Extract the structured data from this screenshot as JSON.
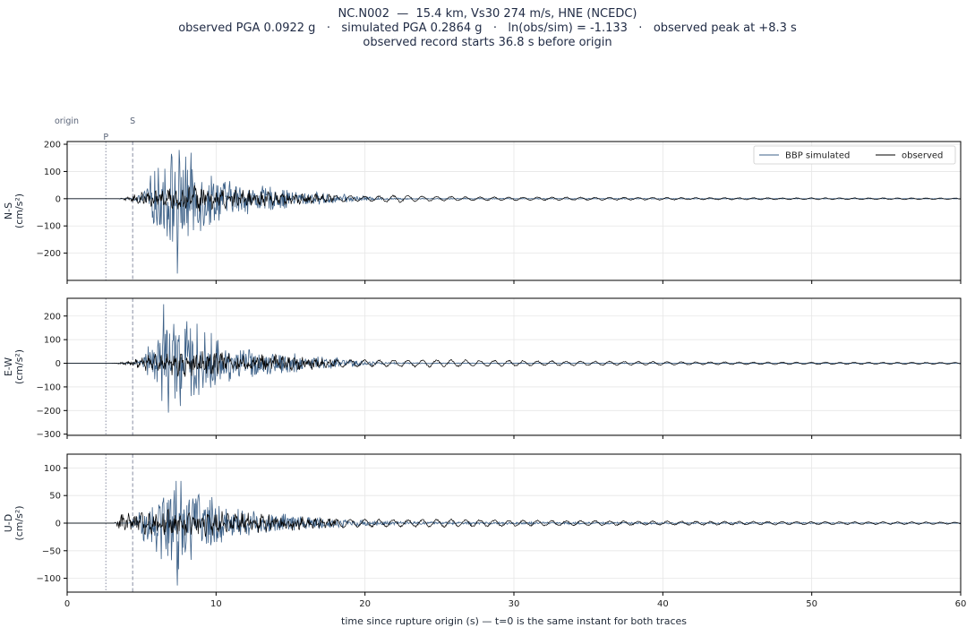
{
  "title": {
    "line1": "NC.N002  —  15.4 km, Vs30 274 m/s, HNE (NCEDC)",
    "line2": "observed PGA 0.0922 g   ·   simulated PGA 0.2864 g   ·   ln(obs/sim) = -1.133   ·   observed peak at +8.3 s",
    "line3": "observed record starts 36.8 s before origin"
  },
  "chart_data": {
    "type": "line",
    "xlabel": "time since rupture origin (s)   —   t=0 is the same instant for both traces",
    "xlim": [
      0,
      60
    ],
    "xticks": [
      0,
      10,
      20,
      30,
      40,
      50,
      60
    ],
    "grid": true,
    "markers": {
      "origin": {
        "label": "origin",
        "t": 0
      },
      "P": {
        "label": "P",
        "t": 2.6
      },
      "S": {
        "label": "S",
        "t": 4.4
      }
    },
    "legend": {
      "placement": "top-right of first panel",
      "entries": [
        {
          "name": "BBP simulated",
          "color": "#3d6188"
        },
        {
          "name": "observed",
          "color": "#000000"
        }
      ]
    },
    "series": [
      {
        "name": "BBP simulated",
        "color": "#3d6188"
      },
      {
        "name": "observed",
        "color": "#000000"
      }
    ],
    "panels": [
      {
        "ylabel": "N-S\n(cm/s²)",
        "ylabel_line1": "N-S",
        "ylabel_line2": "(cm/s²)",
        "ylim": [
          -300,
          210
        ],
        "yticks": [
          -200,
          -100,
          0,
          100,
          200
        ],
        "sim_peak": [
          7.4,
          -275
        ],
        "sim_envelope": [
          [
            4.3,
            2
          ],
          [
            5.0,
            25
          ],
          [
            5.8,
            110
          ],
          [
            6.5,
            180
          ],
          [
            7.3,
            220
          ],
          [
            8.5,
            160
          ],
          [
            9.5,
            120
          ],
          [
            11,
            70
          ],
          [
            13,
            55
          ],
          [
            16,
            30
          ],
          [
            19,
            15
          ],
          [
            21,
            5
          ],
          [
            24,
            2
          ],
          [
            60,
            0.5
          ]
        ],
        "obs_envelope": [
          [
            3.5,
            1
          ],
          [
            4.3,
            12
          ],
          [
            5.5,
            35
          ],
          [
            7.5,
            55
          ],
          [
            9.5,
            55
          ],
          [
            11,
            40
          ],
          [
            14,
            30
          ],
          [
            18,
            15
          ],
          [
            20,
            10
          ],
          [
            22.5,
            15
          ],
          [
            24,
            10
          ],
          [
            27,
            8
          ],
          [
            35,
            6
          ],
          [
            45,
            4
          ],
          [
            60,
            3
          ]
        ]
      },
      {
        "ylabel": "E-W\n(cm/s²)",
        "ylabel_line1": "E-W",
        "ylabel_line2": "(cm/s²)",
        "ylim": [
          -305,
          275
        ],
        "yticks": [
          -300,
          -200,
          -100,
          0,
          100,
          200
        ],
        "sim_peak": [
          6.5,
          250
        ],
        "sim_envelope": [
          [
            4.3,
            2
          ],
          [
            5.0,
            25
          ],
          [
            5.8,
            120
          ],
          [
            6.6,
            230
          ],
          [
            7.4,
            240
          ],
          [
            8.5,
            190
          ],
          [
            9.5,
            140
          ],
          [
            11,
            90
          ],
          [
            13,
            60
          ],
          [
            16,
            40
          ],
          [
            19,
            20
          ],
          [
            21,
            6
          ],
          [
            24,
            2
          ],
          [
            60,
            0.5
          ]
        ],
        "obs_envelope": [
          [
            3.0,
            1
          ],
          [
            4.3,
            15
          ],
          [
            5.5,
            40
          ],
          [
            7.5,
            60
          ],
          [
            10,
            60
          ],
          [
            12,
            45
          ],
          [
            15,
            35
          ],
          [
            18,
            20
          ],
          [
            21,
            15
          ],
          [
            24,
            18
          ],
          [
            27,
            15
          ],
          [
            35,
            10
          ],
          [
            45,
            6
          ],
          [
            60,
            4
          ]
        ]
      },
      {
        "ylabel": "U-D\n(cm/s²)",
        "ylabel_line1": "U-D",
        "ylabel_line2": "(cm/s²)",
        "ylim": [
          -125,
          125
        ],
        "yticks": [
          -100,
          -50,
          0,
          50,
          100
        ],
        "sim_peak": [
          7.4,
          -113
        ],
        "sim_envelope": [
          [
            3.8,
            2
          ],
          [
            4.5,
            15
          ],
          [
            5.5,
            45
          ],
          [
            6.6,
            80
          ],
          [
            7.6,
            100
          ],
          [
            8.5,
            75
          ],
          [
            9.5,
            55
          ],
          [
            11,
            35
          ],
          [
            13,
            25
          ],
          [
            16,
            15
          ],
          [
            19,
            8
          ],
          [
            22,
            3
          ],
          [
            60,
            0.5
          ]
        ],
        "obs_envelope": [
          [
            3.2,
            2
          ],
          [
            3.6,
            18
          ],
          [
            4.5,
            20
          ],
          [
            6,
            25
          ],
          [
            8,
            28
          ],
          [
            10,
            25
          ],
          [
            13,
            18
          ],
          [
            16,
            12
          ],
          [
            19,
            8
          ],
          [
            22,
            7
          ],
          [
            25,
            8
          ],
          [
            30,
            6
          ],
          [
            40,
            4
          ],
          [
            60,
            2
          ]
        ]
      }
    ]
  }
}
